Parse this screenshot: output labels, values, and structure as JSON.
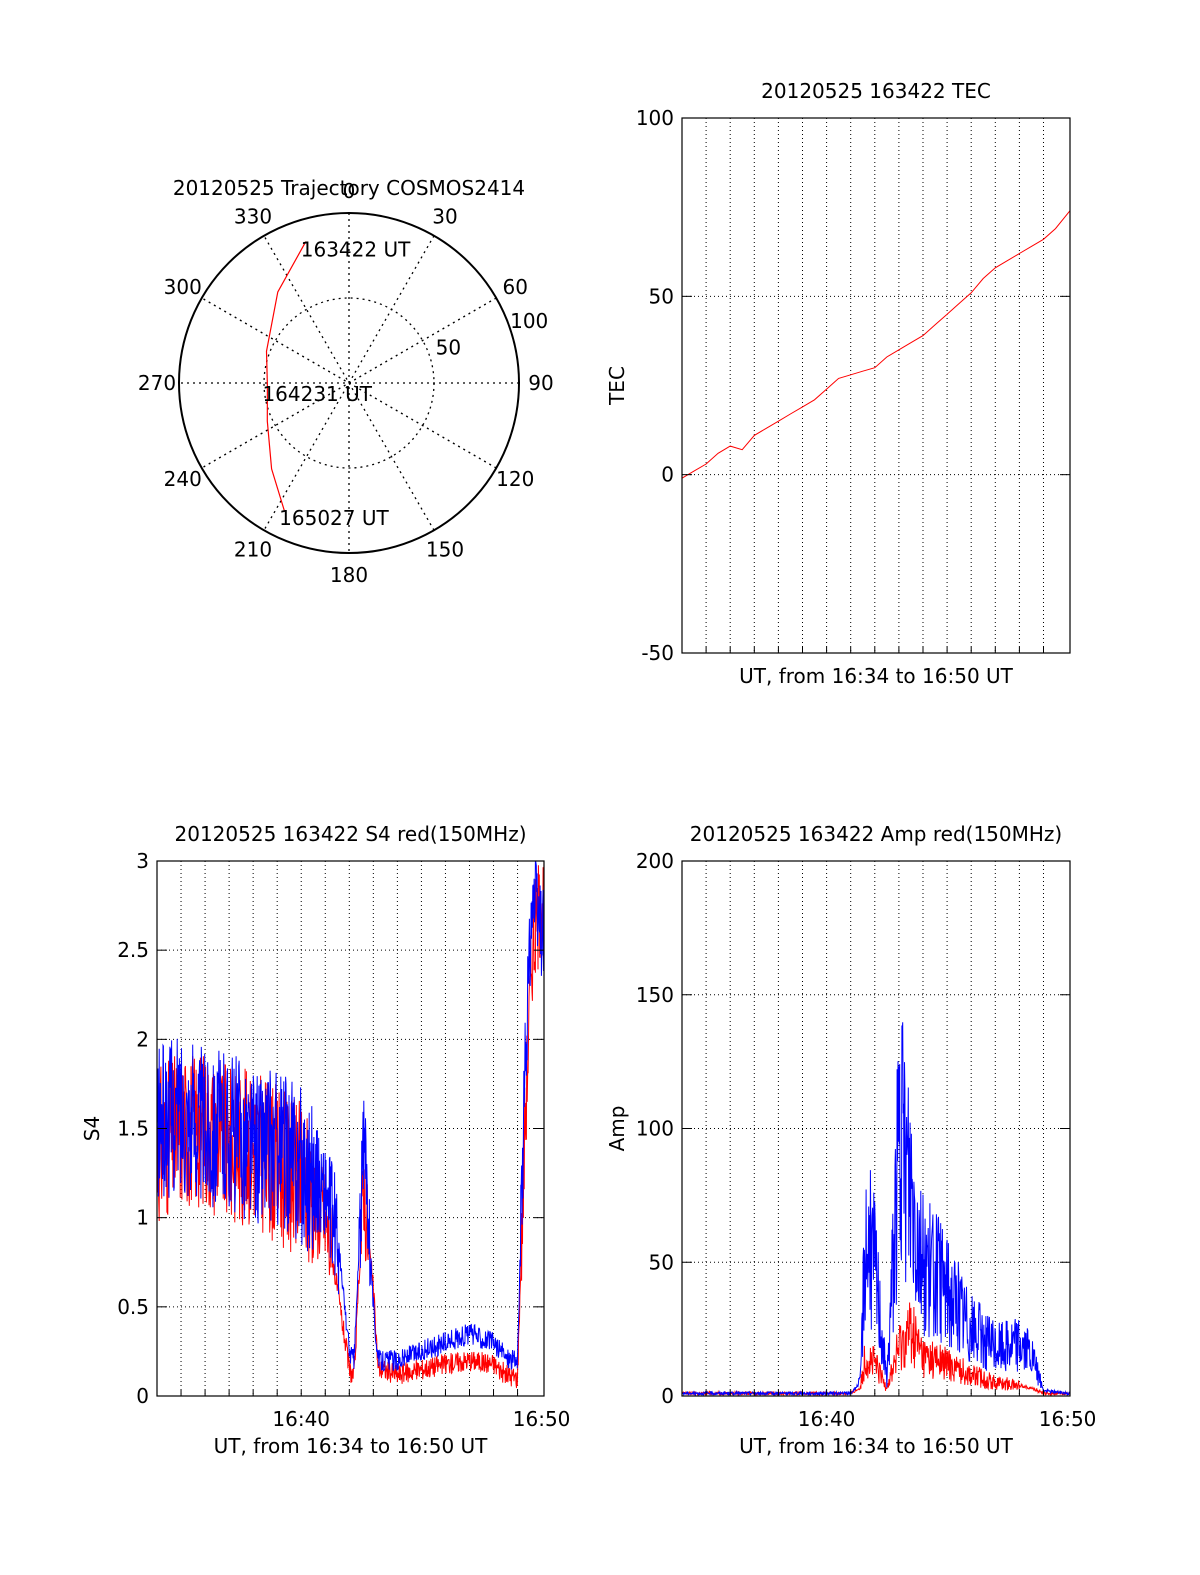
{
  "chart_data": [
    {
      "type": "polar",
      "title": "20120525 Trajectory COSMOS2414",
      "angle_ticks": [
        "0",
        "30",
        "60",
        "90",
        "120",
        "150",
        "180",
        "210",
        "240",
        "270",
        "300",
        "330"
      ],
      "radial_ticks": [
        "50",
        "100"
      ],
      "annotations": [
        {
          "text": "163422 UT",
          "azimuth": 343,
          "radius": 87
        },
        {
          "text": "164231 UT",
          "azimuth": 268,
          "radius": 48
        },
        {
          "text": "165027 UT",
          "azimuth": 207,
          "radius": 84
        }
      ],
      "series": [
        {
          "color": "#ff0000",
          "points": [
            [
              343,
              87
            ],
            [
              322,
              68
            ],
            [
              291,
              52
            ],
            [
              268,
              48
            ],
            [
              245,
              53
            ],
            [
              222,
              68
            ],
            [
              207,
              84
            ]
          ]
        }
      ]
    },
    {
      "type": "line",
      "title": "20120525 163422 TEC",
      "xlabel": "UT, from 16:34 to 16:50 UT",
      "ylabel": "TEC",
      "ylim": [
        -50,
        100
      ],
      "yticks": [
        "-50",
        "0",
        "50",
        "100"
      ],
      "xlim": [
        0,
        16.1
      ],
      "series": [
        {
          "color": "#ff0000",
          "x": [
            0,
            0.5,
            1,
            1.5,
            2,
            2.5,
            3,
            3.5,
            4,
            4.5,
            5,
            5.5,
            6,
            6.5,
            7,
            7.5,
            8,
            8.5,
            9,
            9.5,
            10,
            10.5,
            11,
            11.5,
            12,
            12.5,
            13,
            13.5,
            14,
            14.5,
            15,
            15.5,
            16.1
          ],
          "y": [
            -1,
            1,
            3,
            6,
            8,
            7,
            11,
            13,
            15,
            17,
            19,
            21,
            24,
            27,
            28,
            29,
            30,
            33,
            35,
            37,
            39,
            42,
            45,
            48,
            51,
            55,
            58,
            60,
            62,
            64,
            66,
            69,
            74
          ]
        }
      ]
    },
    {
      "type": "line",
      "title": "20120525 163422 S4 red(150MHz)",
      "xlabel": "UT, from 16:34 to 16:50 UT",
      "ylabel": "S4",
      "ylim": [
        0,
        3
      ],
      "yticks": [
        "0",
        "0.5",
        "1",
        "1.5",
        "2",
        "2.5",
        "3"
      ],
      "xlim": [
        0,
        16.1
      ],
      "xticks": [
        {
          "value": 6,
          "label": "16:40"
        },
        {
          "value": 16,
          "label": "16:50"
        }
      ],
      "series": [
        {
          "color": "#ff0000",
          "x": [
            0,
            1,
            2,
            3,
            4,
            5,
            6,
            7,
            7.5,
            8,
            8.2,
            8.6,
            8.7,
            9,
            9.2,
            9.4,
            10,
            11,
            12,
            13,
            14,
            14.5,
            15,
            15.3,
            15.6,
            16
          ],
          "y": [
            1.4,
            1.5,
            1.5,
            1.4,
            1.4,
            1.3,
            1.2,
            1.0,
            0.6,
            0.15,
            0.1,
            1.2,
            1.0,
            0.6,
            0.15,
            0.15,
            0.12,
            0.15,
            0.18,
            0.2,
            0.18,
            0.12,
            0.1,
            1.5,
            2.5,
            2.8
          ]
        },
        {
          "color": "#0000ff",
          "x": [
            0,
            1,
            2,
            3,
            4,
            5,
            6,
            7,
            7.5,
            8,
            8.2,
            8.6,
            8.7,
            9,
            9.2,
            9.4,
            10,
            11,
            12,
            13,
            14,
            14.5,
            15,
            15.3,
            15.6,
            16
          ],
          "y": [
            1.5,
            1.6,
            1.5,
            1.5,
            1.4,
            1.4,
            1.3,
            1.15,
            0.9,
            0.25,
            0.2,
            1.4,
            1.3,
            0.5,
            0.2,
            0.2,
            0.2,
            0.25,
            0.3,
            0.35,
            0.3,
            0.22,
            0.2,
            1.8,
            2.8,
            2.6
          ]
        }
      ]
    },
    {
      "type": "line",
      "title": "20120525 163422 Amp red(150MHz)",
      "xlabel": "UT, from 16:34 to 16:50 UT",
      "ylabel": "Amp",
      "ylim": [
        0,
        200
      ],
      "yticks": [
        "0",
        "50",
        "100",
        "150",
        "200"
      ],
      "xlim": [
        0,
        16.1
      ],
      "xticks": [
        {
          "value": 6,
          "label": "16:40"
        },
        {
          "value": 16,
          "label": "16:50"
        }
      ],
      "series": [
        {
          "color": "#ff0000",
          "x": [
            0,
            2,
            4,
            6,
            7,
            7.4,
            7.6,
            8,
            8.5,
            9,
            9.5,
            10,
            11,
            12,
            13,
            14,
            14.5,
            15,
            16.1
          ],
          "y": [
            1,
            1,
            1,
            1,
            1,
            3,
            15,
            12,
            3,
            18,
            25,
            15,
            12,
            8,
            5,
            4,
            3,
            1,
            1
          ]
        },
        {
          "color": "#0000ff",
          "x": [
            0,
            2,
            4,
            6,
            7,
            7.4,
            7.6,
            8,
            8.5,
            9,
            9.5,
            10,
            11,
            12,
            13,
            14,
            14.5,
            15,
            16.1
          ],
          "y": [
            1,
            1,
            1,
            1,
            1,
            5,
            60,
            50,
            5,
            95,
            80,
            50,
            40,
            25,
            18,
            20,
            15,
            2,
            1
          ]
        }
      ]
    }
  ]
}
